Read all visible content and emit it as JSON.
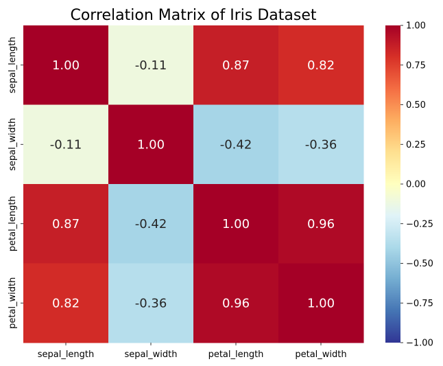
{
  "chart_data": {
    "type": "heatmap",
    "title": "Correlation Matrix of Iris Dataset",
    "x_labels": [
      "sepal_length",
      "sepal_width",
      "petal_length",
      "petal_width"
    ],
    "y_labels": [
      "sepal_length",
      "sepal_width",
      "petal_length",
      "petal_width"
    ],
    "values": [
      [
        1.0,
        -0.11,
        0.87,
        0.82
      ],
      [
        -0.11,
        1.0,
        -0.42,
        -0.36
      ],
      [
        0.87,
        -0.42,
        1.0,
        0.96
      ],
      [
        0.82,
        -0.36,
        0.96,
        1.0
      ]
    ],
    "annotations": [
      [
        "1.00",
        "-0.11",
        "0.87",
        "0.82"
      ],
      [
        "-0.11",
        "1.00",
        "-0.42",
        "-0.36"
      ],
      [
        "0.87",
        "-0.42",
        "1.00",
        "0.96"
      ],
      [
        "0.82",
        "-0.36",
        "0.96",
        "1.00"
      ]
    ],
    "colormap": "RdYlBu_r",
    "vmin": -1.0,
    "vmax": 1.0,
    "colorbar_ticks": [
      "1.00",
      "0.75",
      "0.50",
      "0.25",
      "0.00",
      "−0.25",
      "−0.50",
      "−0.75",
      "−1.00"
    ],
    "colorbar_tick_values": [
      1.0,
      0.75,
      0.5,
      0.25,
      0.0,
      -0.25,
      -0.5,
      -0.75,
      -1.0
    ]
  }
}
